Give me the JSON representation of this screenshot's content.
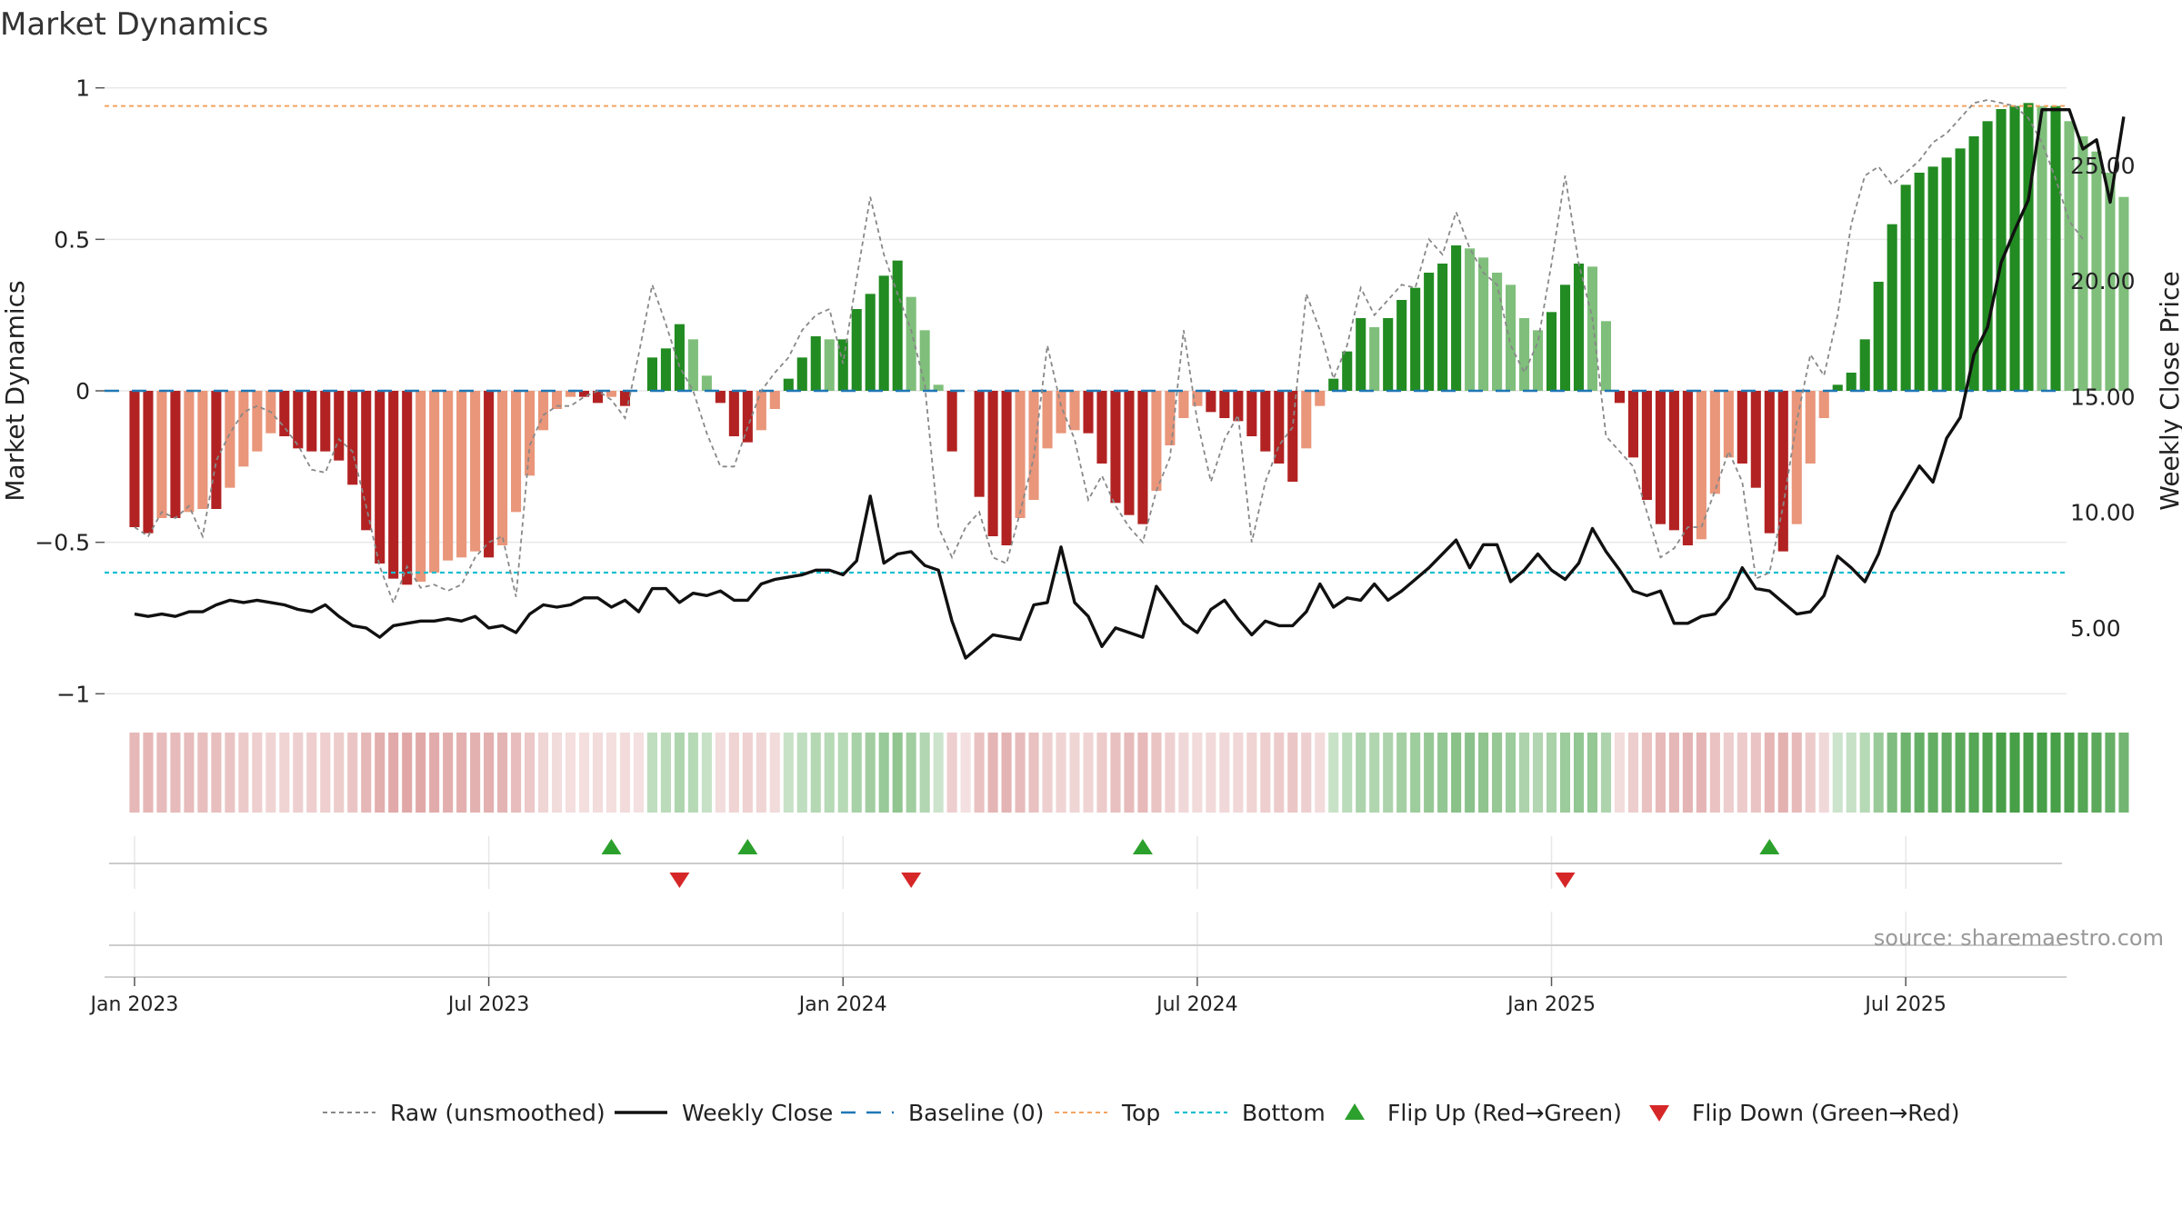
{
  "chart_data": {
    "type": "bar",
    "title": "Market Dynamics",
    "ylabel_left": "Market Dynamics",
    "ylabel_right": "Weekly Close Price",
    "source": "source: sharemaestro.com",
    "ylim_left": [
      -1.05,
      1.05
    ],
    "ylim_right": [
      1.5,
      29.0
    ],
    "yticks_left": [
      {
        "value": 1,
        "label": "1"
      },
      {
        "value": 0.5,
        "label": "0.5"
      },
      {
        "value": 0,
        "label": "0"
      },
      {
        "value": -0.5,
        "label": "−0.5"
      },
      {
        "value": -1,
        "label": "−1"
      }
    ],
    "yticks_right": [
      {
        "value": 25,
        "label": "25.00"
      },
      {
        "value": 20,
        "label": "20.00"
      },
      {
        "value": 15,
        "label": "15.00"
      },
      {
        "value": 10,
        "label": "10.00"
      },
      {
        "value": 5,
        "label": "5.00"
      }
    ],
    "x_ticks": [
      {
        "week": 0,
        "label": "Jan 2023"
      },
      {
        "week": 26,
        "label": "Jul 2023"
      },
      {
        "week": 52,
        "label": "Jan 2024"
      },
      {
        "week": 78,
        "label": "Jul 2024"
      },
      {
        "week": 104,
        "label": "Jan 2025"
      },
      {
        "week": 130,
        "label": "Jul 2025"
      }
    ],
    "x_range_weeks": [
      -2.2,
      141.8
    ],
    "top_level": 0.94,
    "bottom_level": -0.6,
    "baseline": 0,
    "dynamics": [
      -0.45,
      -0.47,
      -0.42,
      -0.42,
      -0.4,
      -0.39,
      -0.39,
      -0.32,
      -0.25,
      -0.2,
      -0.14,
      -0.15,
      -0.19,
      -0.2,
      -0.2,
      -0.23,
      -0.31,
      -0.46,
      -0.57,
      -0.62,
      -0.64,
      -0.63,
      -0.6,
      -0.56,
      -0.55,
      -0.53,
      -0.55,
      -0.51,
      -0.4,
      -0.28,
      -0.13,
      -0.06,
      -0.02,
      -0.02,
      -0.04,
      -0.02,
      -0.05,
      0.0,
      0.11,
      0.14,
      0.22,
      0.17,
      0.05,
      -0.04,
      -0.15,
      -0.17,
      -0.13,
      -0.06,
      0.04,
      0.11,
      0.18,
      0.17,
      0.17,
      0.27,
      0.32,
      0.38,
      0.43,
      0.31,
      0.2,
      0.02,
      -0.2,
      0.0,
      -0.35,
      -0.48,
      -0.51,
      -0.42,
      -0.36,
      -0.19,
      -0.14,
      -0.13,
      -0.14,
      -0.24,
      -0.37,
      -0.41,
      -0.44,
      -0.33,
      -0.18,
      -0.09,
      -0.05,
      -0.07,
      -0.09,
      -0.1,
      -0.15,
      -0.2,
      -0.24,
      -0.3,
      -0.19,
      -0.05,
      0.04,
      0.13,
      0.24,
      0.21,
      0.24,
      0.3,
      0.34,
      0.39,
      0.42,
      0.48,
      0.47,
      0.44,
      0.39,
      0.35,
      0.24,
      0.2,
      0.26,
      0.35,
      0.42,
      0.41,
      0.23,
      -0.04,
      -0.22,
      -0.36,
      -0.44,
      -0.46,
      -0.51,
      -0.49,
      -0.34,
      -0.22,
      -0.24,
      -0.32,
      -0.47,
      -0.53,
      -0.44,
      -0.24,
      -0.09,
      0.02,
      0.06,
      0.17,
      0.36,
      0.55,
      0.68,
      0.72,
      0.74,
      0.77,
      0.8,
      0.84,
      0.89,
      0.93,
      0.94,
      0.95,
      0.94,
      0.94,
      0.89,
      0.84,
      0.79,
      0.72,
      0.64
    ],
    "raw": [
      -0.45,
      -0.48,
      -0.4,
      -0.42,
      -0.38,
      -0.48,
      -0.23,
      -0.14,
      -0.07,
      -0.05,
      -0.07,
      -0.12,
      -0.18,
      -0.26,
      -0.27,
      -0.16,
      -0.2,
      -0.38,
      -0.58,
      -0.7,
      -0.58,
      -0.65,
      -0.64,
      -0.66,
      -0.64,
      -0.55,
      -0.5,
      -0.48,
      -0.68,
      -0.18,
      -0.08,
      -0.05,
      -0.05,
      -0.02,
      0.0,
      -0.03,
      -0.09,
      0.12,
      0.35,
      0.22,
      0.08,
      0.0,
      -0.14,
      -0.25,
      -0.25,
      -0.12,
      0.0,
      0.06,
      0.11,
      0.2,
      0.25,
      0.27,
      0.09,
      0.37,
      0.64,
      0.45,
      0.32,
      0.2,
      0.02,
      -0.45,
      -0.55,
      -0.45,
      -0.4,
      -0.55,
      -0.57,
      -0.4,
      -0.22,
      0.15,
      -0.05,
      -0.16,
      -0.36,
      -0.28,
      -0.38,
      -0.45,
      -0.5,
      -0.33,
      -0.22,
      0.2,
      -0.1,
      -0.3,
      -0.16,
      -0.08,
      -0.5,
      -0.3,
      -0.18,
      -0.12,
      0.32,
      0.2,
      0.04,
      0.15,
      0.34,
      0.25,
      0.3,
      0.35,
      0.34,
      0.5,
      0.45,
      0.59,
      0.47,
      0.39,
      0.35,
      0.15,
      0.06,
      0.16,
      0.42,
      0.71,
      0.42,
      0.24,
      -0.15,
      -0.2,
      -0.25,
      -0.4,
      -0.55,
      -0.52,
      -0.45,
      -0.45,
      -0.33,
      -0.2,
      -0.3,
      -0.62,
      -0.6,
      -0.38,
      -0.1,
      0.12,
      0.05,
      0.25,
      0.55,
      0.71,
      0.74,
      0.68,
      0.72,
      0.76,
      0.82,
      0.85,
      0.9,
      0.95,
      0.96,
      0.95,
      0.94,
      0.9,
      0.82,
      0.7,
      0.56,
      0.5
    ],
    "weekly_close": [
      5.6,
      5.5,
      5.6,
      5.5,
      5.7,
      5.7,
      6.0,
      6.2,
      6.1,
      6.2,
      6.1,
      6.0,
      5.8,
      5.7,
      6.0,
      5.5,
      5.1,
      5.0,
      4.6,
      5.1,
      5.2,
      5.3,
      5.3,
      5.4,
      5.3,
      5.5,
      5.0,
      5.1,
      4.8,
      5.6,
      6.0,
      5.9,
      6.0,
      6.3,
      6.3,
      5.9,
      6.2,
      5.7,
      6.7,
      6.7,
      6.1,
      6.5,
      6.4,
      6.6,
      6.2,
      6.2,
      6.9,
      7.1,
      7.2,
      7.3,
      7.5,
      7.5,
      7.3,
      7.9,
      10.7,
      7.8,
      8.2,
      8.3,
      7.7,
      7.5,
      5.3,
      3.7,
      4.2,
      4.7,
      4.6,
      4.5,
      6.0,
      6.1,
      8.5,
      6.1,
      5.5,
      4.2,
      5.0,
      4.8,
      4.6,
      6.8,
      6.0,
      5.2,
      4.8,
      5.8,
      6.2,
      5.4,
      4.7,
      5.3,
      5.1,
      5.1,
      5.7,
      6.9,
      5.9,
      6.3,
      6.2,
      6.9,
      6.2,
      6.6,
      7.1,
      7.6,
      8.2,
      8.8,
      7.6,
      8.6,
      8.6,
      7.0,
      7.5,
      8.2,
      7.5,
      7.1,
      7.8,
      9.3,
      8.3,
      7.5,
      6.6,
      6.4,
      6.6,
      5.2,
      5.2,
      5.5,
      5.6,
      6.3,
      7.6,
      6.7,
      6.6,
      6.1,
      5.6,
      5.7,
      6.4,
      8.1,
      7.6,
      7.0,
      8.2,
      10.0,
      11.0,
      12.0,
      11.3,
      13.2,
      14.1,
      16.8,
      18.0,
      20.8,
      22.2,
      23.5,
      27.4,
      27.4,
      27.4,
      25.7,
      26.1,
      23.4,
      27.1
    ],
    "flip_up_weeks": [
      35,
      45,
      74,
      120
    ],
    "flip_down_weeks": [
      40,
      57,
      105
    ],
    "legend": [
      {
        "key": "raw",
        "label": "Raw (unsmoothed)"
      },
      {
        "key": "close",
        "label": "Weekly Close"
      },
      {
        "key": "baseline",
        "label": "Baseline (0)"
      },
      {
        "key": "top",
        "label": "Top"
      },
      {
        "key": "bottom",
        "label": "Bottom"
      },
      {
        "key": "flip_up",
        "label": "Flip Up (Red→Green)"
      },
      {
        "key": "flip_down",
        "label": "Flip Down (Green→Red)"
      }
    ]
  },
  "colors": {
    "strong_green": "#228b22",
    "light_green": "#7fbf7b",
    "strong_red": "#b22222",
    "light_red": "#e9967a",
    "raw": "#888888",
    "close": "#111111",
    "baseline": "#1f77b4",
    "top": "#f4a460",
    "bottom": "#17becf",
    "flip_up": "#2ca02c",
    "flip_down": "#d62728",
    "grid": "#e8e8e8",
    "axis": "#cccccc",
    "source_text": "#999999"
  }
}
